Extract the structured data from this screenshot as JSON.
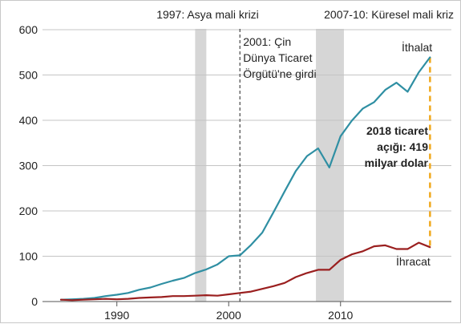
{
  "chart_data": {
    "type": "line",
    "xlim": [
      1985,
      2019
    ],
    "ylim": [
      0,
      600
    ],
    "y_ticks": [
      0,
      100,
      200,
      300,
      400,
      500,
      600
    ],
    "x_ticks": [
      1990,
      2000,
      2010
    ],
    "grid": "horizontal",
    "series": [
      {
        "name": "İthalat",
        "color": "#2f8fa3",
        "x": [
          1985,
          1986,
          1987,
          1988,
          1989,
          1990,
          1991,
          1992,
          1993,
          1994,
          1995,
          1996,
          1997,
          1998,
          1999,
          2000,
          2001,
          2002,
          2003,
          2004,
          2005,
          2006,
          2007,
          2008,
          2009,
          2010,
          2011,
          2012,
          2013,
          2014,
          2015,
          2016,
          2017,
          2018
        ],
        "values": [
          4,
          5,
          6,
          8,
          12,
          15,
          19,
          26,
          31,
          39,
          46,
          52,
          63,
          71,
          82,
          100,
          102,
          125,
          152,
          197,
          243,
          288,
          321,
          338,
          296,
          365,
          399,
          426,
          440,
          467,
          483,
          463,
          506,
          539
        ]
      },
      {
        "name": "İhracat",
        "color": "#9a1f1f",
        "x": [
          1985,
          1986,
          1987,
          1988,
          1989,
          1990,
          1991,
          1992,
          1993,
          1994,
          1995,
          1996,
          1997,
          1998,
          1999,
          2000,
          2001,
          2002,
          2003,
          2004,
          2005,
          2006,
          2007,
          2008,
          2009,
          2010,
          2011,
          2012,
          2013,
          2014,
          2015,
          2016,
          2017,
          2018
        ],
        "values": [
          4,
          3,
          4,
          5,
          6,
          5,
          6,
          8,
          9,
          10,
          12,
          12,
          13,
          14,
          13,
          16,
          19,
          22,
          28,
          34,
          41,
          54,
          63,
          70,
          70,
          92,
          104,
          111,
          122,
          124,
          116,
          116,
          130,
          120
        ]
      }
    ],
    "shaded_periods": [
      {
        "label": "1997: Asya mali krizi",
        "x_start": 1997,
        "x_end": 1998
      },
      {
        "label": "2007-10: Küresel mali kriz",
        "x_start": 2007.8,
        "x_end": 2010.3
      }
    ],
    "vertical_markers": [
      {
        "x": 2001,
        "lines": [
          "2001: Çin",
          "Dünya Ticaret",
          "Örgütü'ne girdi"
        ]
      }
    ],
    "deficit_annotation": {
      "x": 2018,
      "from": 120,
      "to": 539,
      "color": "#f0a81c",
      "lines": [
        "2018 ticaret",
        "açığı: 419",
        "milyar dolar"
      ]
    }
  }
}
